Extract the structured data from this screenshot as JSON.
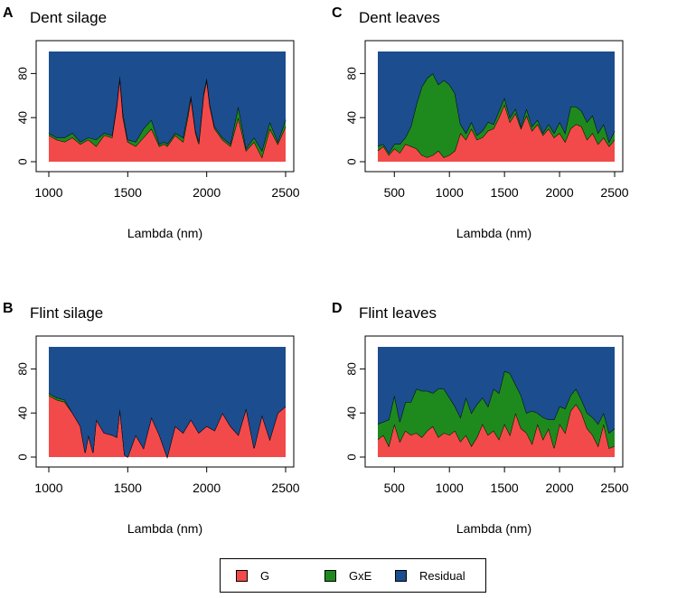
{
  "legend": {
    "items": [
      {
        "label": "G",
        "color": "#f24a4a"
      },
      {
        "label": "GxE",
        "color": "#1e8a1e"
      },
      {
        "label": "Residual",
        "color": "#1c4d8f"
      }
    ]
  },
  "chart_data": [
    {
      "panel": "A",
      "title": "Dent silage",
      "type": "area",
      "stacked": true,
      "xlabel": "Lambda (nm)",
      "ylabel": "",
      "xlim": [
        1000,
        2500
      ],
      "ylim": [
        0,
        100
      ],
      "xticks": [
        1000,
        1500,
        2000,
        2500
      ],
      "yticks": [
        0,
        40,
        80
      ],
      "x": [
        1000,
        1050,
        1100,
        1150,
        1200,
        1250,
        1300,
        1350,
        1400,
        1430,
        1450,
        1470,
        1500,
        1550,
        1600,
        1650,
        1700,
        1730,
        1750,
        1800,
        1850,
        1880,
        1900,
        1930,
        1950,
        1980,
        2000,
        2020,
        2050,
        2100,
        2150,
        2200,
        2250,
        2300,
        2350,
        2400,
        2450,
        2500
      ],
      "series": [
        {
          "name": "G",
          "values": [
            24,
            20,
            18,
            22,
            16,
            20,
            14,
            24,
            22,
            50,
            76,
            40,
            18,
            14,
            22,
            30,
            14,
            16,
            14,
            24,
            18,
            40,
            58,
            26,
            16,
            60,
            74,
            50,
            30,
            20,
            14,
            40,
            10,
            18,
            4,
            30,
            16,
            32
          ]
        },
        {
          "name": "GxE",
          "values": [
            2,
            2,
            4,
            4,
            2,
            2,
            6,
            2,
            2,
            2,
            2,
            4,
            2,
            4,
            8,
            8,
            2,
            2,
            2,
            2,
            4,
            4,
            2,
            2,
            2,
            2,
            2,
            2,
            2,
            2,
            2,
            10,
            2,
            4,
            6,
            6,
            2,
            6
          ]
        },
        {
          "name": "Residual",
          "values": [
            74,
            78,
            78,
            74,
            82,
            78,
            80,
            74,
            76,
            48,
            22,
            56,
            80,
            82,
            70,
            62,
            84,
            82,
            84,
            74,
            78,
            56,
            40,
            72,
            82,
            38,
            24,
            48,
            68,
            78,
            84,
            50,
            88,
            78,
            90,
            64,
            82,
            62
          ]
        }
      ]
    },
    {
      "panel": "C",
      "title": "Dent leaves",
      "type": "area",
      "stacked": true,
      "xlabel": "Lambda (nm)",
      "ylabel": "",
      "xlim": [
        350,
        2500
      ],
      "ylim": [
        0,
        100
      ],
      "xticks": [
        500,
        1000,
        1500,
        2000,
        2500
      ],
      "yticks": [
        0,
        40,
        80
      ],
      "x": [
        350,
        400,
        450,
        500,
        550,
        600,
        650,
        700,
        750,
        800,
        850,
        900,
        950,
        1000,
        1050,
        1100,
        1150,
        1200,
        1250,
        1300,
        1350,
        1400,
        1450,
        1500,
        1550,
        1600,
        1650,
        1700,
        1750,
        1800,
        1850,
        1900,
        1950,
        2000,
        2050,
        2100,
        2150,
        2200,
        2250,
        2300,
        2350,
        2400,
        2450,
        2500
      ],
      "series": [
        {
          "name": "G",
          "values": [
            10,
            14,
            6,
            12,
            8,
            16,
            14,
            12,
            6,
            4,
            6,
            10,
            4,
            6,
            10,
            26,
            20,
            30,
            20,
            22,
            28,
            30,
            40,
            52,
            36,
            44,
            30,
            42,
            28,
            34,
            24,
            30,
            22,
            26,
            18,
            30,
            34,
            32,
            20,
            26,
            16,
            22,
            14,
            20
          ]
        },
        {
          "name": "GxE",
          "values": [
            4,
            2,
            2,
            4,
            8,
            6,
            18,
            40,
            62,
            72,
            74,
            60,
            70,
            64,
            52,
            8,
            6,
            6,
            4,
            6,
            8,
            4,
            6,
            6,
            4,
            4,
            2,
            6,
            4,
            4,
            2,
            4,
            4,
            10,
            8,
            20,
            16,
            14,
            16,
            16,
            10,
            12,
            4,
            8
          ]
        },
        {
          "name": "Residual",
          "values": [
            86,
            84,
            92,
            84,
            84,
            78,
            68,
            48,
            32,
            24,
            20,
            30,
            26,
            30,
            38,
            66,
            74,
            64,
            76,
            72,
            64,
            66,
            54,
            42,
            60,
            52,
            68,
            52,
            68,
            62,
            74,
            66,
            74,
            64,
            74,
            50,
            50,
            54,
            64,
            58,
            74,
            66,
            82,
            72
          ]
        }
      ]
    },
    {
      "panel": "B",
      "title": "Flint silage",
      "type": "area",
      "stacked": true,
      "xlabel": "Lambda (nm)",
      "ylabel": "",
      "xlim": [
        1000,
        2500
      ],
      "ylim": [
        0,
        100
      ],
      "xticks": [
        1000,
        1500,
        2000,
        2500
      ],
      "yticks": [
        0,
        40,
        80
      ],
      "x": [
        1000,
        1050,
        1100,
        1150,
        1200,
        1230,
        1250,
        1280,
        1300,
        1350,
        1400,
        1430,
        1450,
        1480,
        1500,
        1550,
        1600,
        1650,
        1700,
        1750,
        1800,
        1850,
        1900,
        1950,
        2000,
        2050,
        2100,
        2150,
        2200,
        2250,
        2300,
        2350,
        2400,
        2450,
        2500
      ],
      "series": [
        {
          "name": "G",
          "values": [
            56,
            52,
            50,
            40,
            28,
            4,
            20,
            4,
            34,
            22,
            20,
            18,
            44,
            2,
            0,
            20,
            8,
            36,
            20,
            0,
            28,
            22,
            34,
            22,
            28,
            24,
            40,
            28,
            20,
            44,
            8,
            38,
            16,
            40,
            46
          ]
        },
        {
          "name": "GxE",
          "values": [
            2,
            2,
            2,
            0,
            0,
            0,
            0,
            0,
            0,
            0,
            0,
            0,
            0,
            0,
            0,
            0,
            0,
            0,
            0,
            0,
            0,
            0,
            0,
            0,
            0,
            0,
            0,
            0,
            0,
            0,
            0,
            0,
            0,
            0,
            0
          ]
        },
        {
          "name": "Residual",
          "values": [
            42,
            46,
            48,
            60,
            72,
            96,
            80,
            96,
            66,
            78,
            80,
            82,
            56,
            98,
            100,
            80,
            92,
            64,
            80,
            100,
            72,
            78,
            66,
            78,
            72,
            76,
            60,
            72,
            80,
            56,
            92,
            62,
            84,
            60,
            54
          ]
        }
      ]
    },
    {
      "panel": "D",
      "title": "Flint leaves",
      "type": "area",
      "stacked": true,
      "xlabel": "Lambda (nm)",
      "ylabel": "",
      "xlim": [
        350,
        2500
      ],
      "ylim": [
        0,
        100
      ],
      "xticks": [
        500,
        1000,
        1500,
        2000,
        2500
      ],
      "yticks": [
        0,
        40,
        80
      ],
      "x": [
        350,
        400,
        450,
        500,
        550,
        600,
        650,
        700,
        750,
        800,
        850,
        900,
        950,
        1000,
        1050,
        1100,
        1150,
        1200,
        1250,
        1300,
        1350,
        1400,
        1450,
        1500,
        1550,
        1600,
        1650,
        1700,
        1750,
        1800,
        1850,
        1900,
        1950,
        2000,
        2050,
        2100,
        2150,
        2200,
        2250,
        2300,
        2350,
        2400,
        2450,
        2500
      ],
      "series": [
        {
          "name": "G",
          "values": [
            16,
            20,
            10,
            30,
            14,
            24,
            20,
            22,
            18,
            24,
            28,
            18,
            22,
            20,
            24,
            14,
            20,
            10,
            18,
            30,
            20,
            24,
            16,
            30,
            20,
            40,
            26,
            22,
            12,
            30,
            16,
            26,
            8,
            30,
            22,
            42,
            48,
            40,
            26,
            20,
            10,
            30,
            8,
            10
          ]
        },
        {
          "name": "GxE",
          "values": [
            14,
            12,
            24,
            26,
            18,
            26,
            30,
            40,
            42,
            36,
            30,
            44,
            40,
            34,
            22,
            22,
            34,
            30,
            30,
            24,
            26,
            38,
            42,
            48,
            56,
            26,
            30,
            18,
            30,
            10,
            20,
            8,
            26,
            16,
            22,
            14,
            14,
            12,
            14,
            16,
            20,
            10,
            14,
            16
          ]
        },
        {
          "name": "Residual",
          "values": [
            70,
            68,
            66,
            44,
            68,
            50,
            50,
            38,
            40,
            40,
            42,
            38,
            38,
            46,
            54,
            64,
            46,
            60,
            52,
            46,
            54,
            38,
            42,
            22,
            24,
            34,
            44,
            60,
            58,
            60,
            64,
            66,
            66,
            54,
            56,
            44,
            38,
            48,
            60,
            64,
            70,
            60,
            78,
            74
          ]
        }
      ]
    }
  ]
}
